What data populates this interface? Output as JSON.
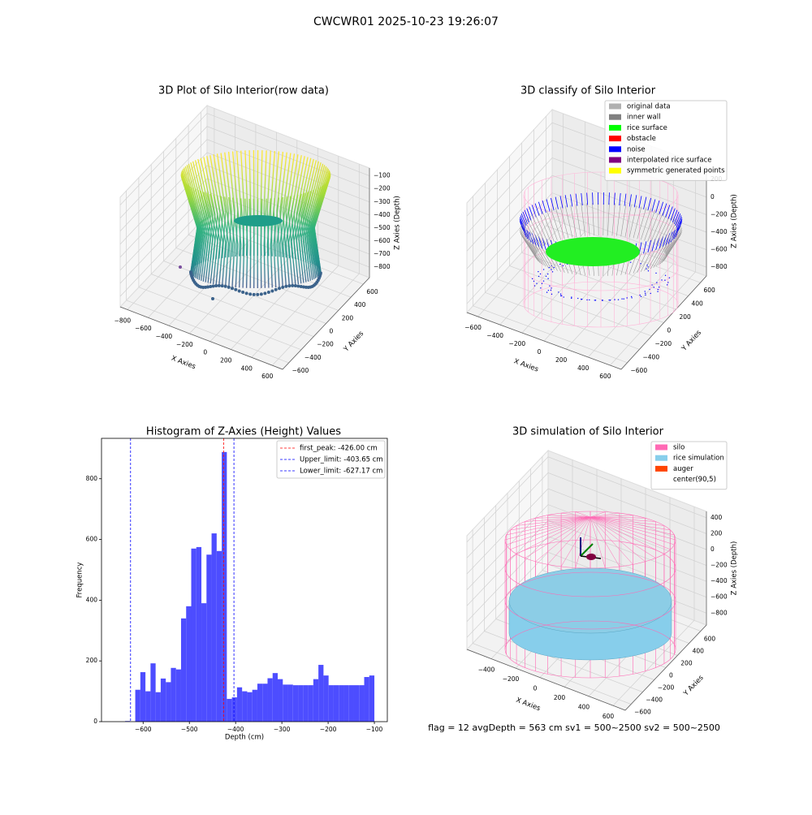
{
  "suptitle": "CWCWR01 2025-10-23 19:26:07",
  "footer_text": "flag = 12   avgDepth = 563 cm  sv1 = 500~2500  sv2 = 500~2500",
  "chart_data": [
    {
      "type": "scatter3d",
      "title": "3D Plot of Silo Interior(row data)",
      "xlabel": "X Axies",
      "ylabel": "Y Axies",
      "zlabel": "Z Axies (Depth)",
      "xlim": [
        -870,
        700
      ],
      "ylim": [
        -700,
        700
      ],
      "zlim": [
        -880,
        -40
      ],
      "xticks": [
        {
          "value": -800,
          "label": "−800"
        },
        {
          "value": -600,
          "label": "−600"
        },
        {
          "value": -400,
          "label": "−400"
        },
        {
          "value": -200,
          "label": "−200"
        },
        0,
        200,
        400,
        600
      ],
      "yticks": [
        {
          "value": -600,
          "label": "−600"
        },
        {
          "value": -400,
          "label": "−400"
        },
        {
          "value": -200,
          "label": "−200"
        },
        0,
        200,
        400,
        600
      ],
      "zticks": [
        {
          "value": -800,
          "label": "−800"
        },
        {
          "value": -700,
          "label": "−700"
        },
        {
          "value": -600,
          "label": "−600"
        },
        {
          "value": -500,
          "label": "−500"
        },
        {
          "value": -400,
          "label": "−400"
        },
        {
          "value": -300,
          "label": "−300"
        },
        {
          "value": -200,
          "label": "−200"
        },
        {
          "value": -100,
          "label": "−100"
        }
      ]
    },
    {
      "type": "scatter3d",
      "title": "3D classify of Silo Interior",
      "xlabel": "X Axies",
      "ylabel": "Y Axies",
      "zlabel": "Z Axies (Depth)",
      "xlim": [
        -700,
        700
      ],
      "ylim": [
        -700,
        700
      ],
      "zlim": [
        -900,
        350
      ],
      "xticks": [
        {
          "value": -600,
          "label": "−600"
        },
        {
          "value": -400,
          "label": "−400"
        },
        {
          "value": -200,
          "label": "−200"
        },
        0,
        200,
        400,
        600
      ],
      "yticks": [
        {
          "value": -600,
          "label": "−600"
        },
        {
          "value": -400,
          "label": "−400"
        },
        {
          "value": -200,
          "label": "−200"
        },
        0,
        200,
        400,
        600
      ],
      "zticks": [
        {
          "value": -800,
          "label": "−800"
        },
        {
          "value": -600,
          "label": "−600"
        },
        {
          "value": -400,
          "label": "−400"
        },
        {
          "value": -200,
          "label": "−200"
        },
        0,
        200
      ],
      "legend_position": "upper right",
      "legend": [
        {
          "name": "original data",
          "color": "#b0b0b0"
        },
        {
          "name": "inner wall",
          "color": "#808080"
        },
        {
          "name": "rice surface",
          "color": "#00ff00"
        },
        {
          "name": "obstacle",
          "color": "#ff0000"
        },
        {
          "name": "noise",
          "color": "#0000ff"
        },
        {
          "name": "interpolated rice surface",
          "color": "#800080"
        },
        {
          "name": "symmetric generated points",
          "color": "#ffff00"
        }
      ]
    },
    {
      "type": "histogram",
      "title": "Histogram of Z-Axies (Height) Values",
      "xlabel": "Depth (cm)",
      "ylabel": "Frequency",
      "color": "#4d4dff",
      "bins": [
        -650,
        -639,
        -628,
        -617,
        -606,
        -595,
        -584,
        -573,
        -562,
        -551,
        -540,
        -529,
        -518,
        -507,
        -496,
        -485,
        -474,
        -463,
        -452,
        -441,
        -430,
        -419,
        -408,
        -397,
        -386,
        -375,
        -364,
        -353,
        -342,
        -331,
        -320,
        -309,
        -298,
        -287,
        -276,
        -265,
        -254,
        -243,
        -232,
        -221,
        -210,
        -199,
        -188,
        -177,
        -166,
        -155,
        -144,
        -133,
        -122,
        -111,
        -100
      ],
      "values": [
        0,
        2,
        0,
        105,
        163,
        100,
        192,
        97,
        142,
        130,
        177,
        172,
        340,
        380,
        570,
        575,
        390,
        550,
        620,
        562,
        888,
        75,
        80,
        113,
        100,
        97,
        105,
        125,
        125,
        143,
        160,
        140,
        122,
        122,
        120,
        120,
        120,
        120,
        140,
        187,
        152,
        120,
        120,
        120,
        120,
        120,
        120,
        120,
        147,
        152
      ],
      "xlim": [
        -690,
        -72
      ],
      "ylim": [
        0,
        933
      ],
      "xticks": [
        {
          "value": -600,
          "label": "−600"
        },
        {
          "value": -500,
          "label": "−500"
        },
        {
          "value": -400,
          "label": "−400"
        },
        {
          "value": -300,
          "label": "−300"
        },
        {
          "value": -200,
          "label": "−200"
        },
        {
          "value": -100,
          "label": "−100"
        }
      ],
      "yticks": [
        0,
        200,
        400,
        600,
        800
      ],
      "legend_position": "upper right",
      "vlines": [
        {
          "name": "first_peak: -426.00 cm",
          "value": -426,
          "color": "#ff0000"
        },
        {
          "name": "Upper_limit: -403.65 cm",
          "value": -403.65,
          "color": "#0000ff"
        },
        {
          "name": "Lower_limit: -627.17 cm",
          "value": -627.17,
          "color": "#0000ff"
        }
      ]
    },
    {
      "type": "surface3d",
      "title": "3D simulation of Silo Interior",
      "xlabel": "X Axies",
      "ylabel": "Y Axies",
      "zlabel": "Z Axies (Depth)",
      "xlim": [
        -600,
        700
      ],
      "ylim": [
        -700,
        700
      ],
      "zlim": [
        -950,
        480
      ],
      "xticks": [
        {
          "value": -400,
          "label": "−400"
        },
        {
          "value": -200,
          "label": "−200"
        },
        0,
        200,
        400,
        600
      ],
      "yticks": [
        {
          "value": -600,
          "label": "−600"
        },
        {
          "value": -400,
          "label": "−400"
        },
        {
          "value": -200,
          "label": "−200"
        },
        0,
        200,
        400,
        600
      ],
      "zticks": [
        {
          "value": -800,
          "label": "−800"
        },
        {
          "value": -600,
          "label": "−600"
        },
        {
          "value": -400,
          "label": "−400"
        },
        {
          "value": -200,
          "label": "−200"
        },
        0,
        200,
        400
      ],
      "legend_position": "upper right",
      "legend": [
        {
          "name": "silo",
          "color": "#ff69b4"
        },
        {
          "name": "rice simulation",
          "color": "#87ceeb"
        },
        {
          "name": "auger",
          "color": "#ff4500"
        },
        {
          "name": "center(90,5)",
          "color": "#ffffff"
        }
      ]
    }
  ]
}
